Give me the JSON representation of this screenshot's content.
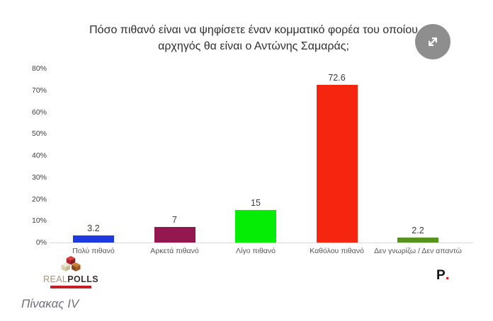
{
  "chart_data": {
    "type": "bar",
    "title": "Πόσο πιθανό είναι να ψηφίσετε έναν κομματικό φορέα του οποίου αρχηγός θα είναι ο Αντώνης Σαμαράς;",
    "categories": [
      "Πολύ πιθανό",
      "Αρκετά πιθανό",
      "Λίγο πιθανό",
      "Καθόλου πιθανό",
      "Δεν γνωρίζω / Δεν απαντώ"
    ],
    "values": [
      3.2,
      7,
      15,
      72.6,
      2.2
    ],
    "value_labels": [
      "3.2",
      "7",
      "15",
      "72.6",
      "2.2"
    ],
    "bar_colors": [
      "#1d3ae0",
      "#92184f",
      "#05ec05",
      "#f5250f",
      "#58921e"
    ],
    "xlabel": "",
    "ylabel": "",
    "ylim": [
      0,
      80
    ],
    "y_ticks": [
      "0%",
      "10%",
      "20%",
      "30%",
      "40%",
      "50%",
      "60%",
      "70%",
      "80%"
    ],
    "grid": false,
    "legend": "none"
  },
  "expand_button": {
    "icon": "expand-arrows"
  },
  "footer": {
    "realpolls": {
      "real": "REAL",
      "polls": "POLLS"
    },
    "brand_p": "P",
    "brand_dot": "."
  },
  "caption": "Πίνακας IV"
}
